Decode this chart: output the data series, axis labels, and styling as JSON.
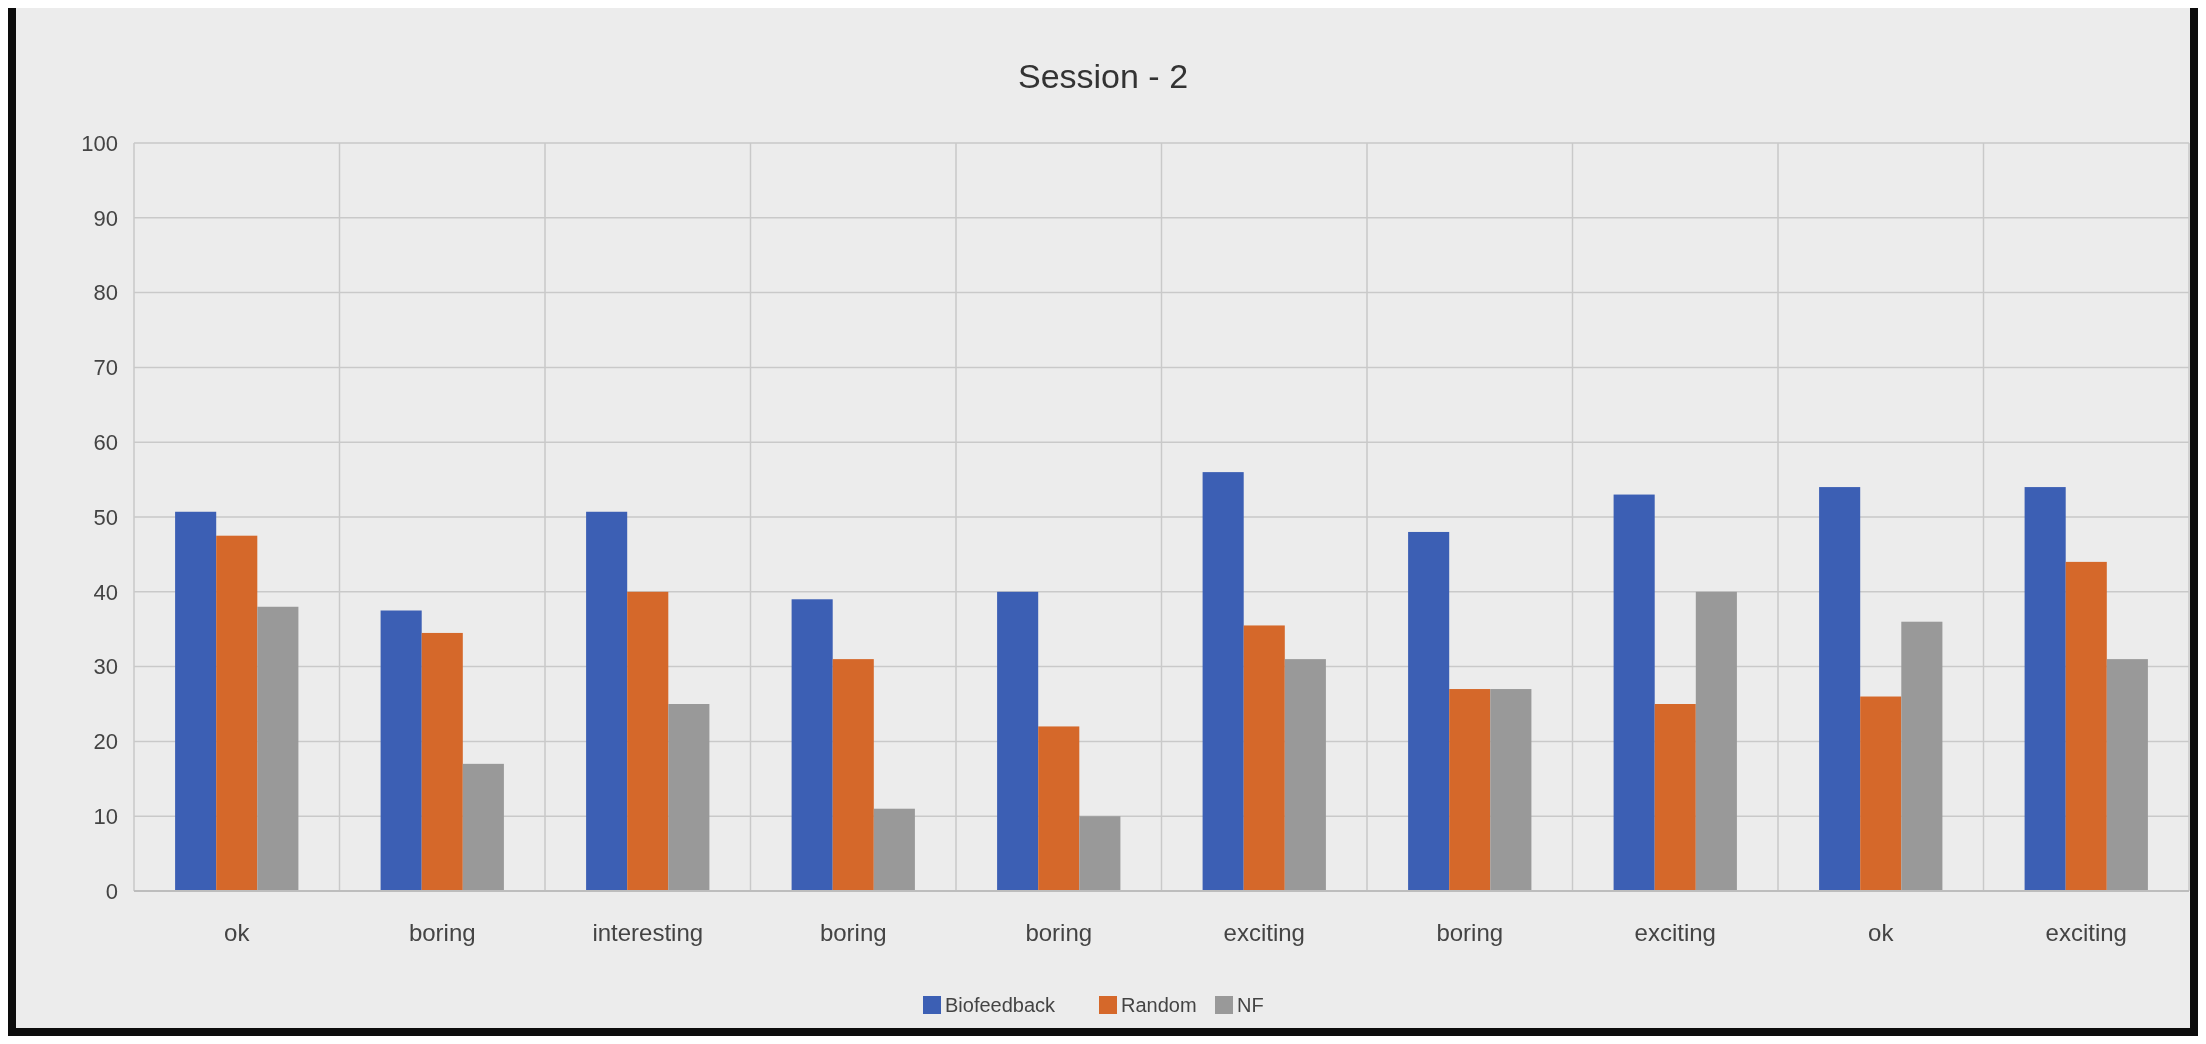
{
  "chart_data": {
    "type": "bar",
    "title": "Session - 2",
    "categories": [
      "ok",
      "boring",
      "interesting",
      "boring",
      "boring",
      "exciting",
      "boring",
      "exciting",
      "ok",
      "exciting"
    ],
    "series": [
      {
        "name": "Biofeedback",
        "color": "#3c5fb4",
        "values": [
          50.7,
          37.5,
          50.7,
          39,
          40,
          56,
          48,
          53,
          54,
          54
        ]
      },
      {
        "name": "Random",
        "color": "#d5682a",
        "values": [
          47.5,
          34.5,
          40,
          31,
          22,
          35.5,
          27,
          25,
          26,
          44
        ]
      },
      {
        "name": "NF",
        "color": "#999999",
        "values": [
          38,
          17,
          25,
          11,
          10,
          31,
          27,
          40,
          36,
          31
        ]
      }
    ],
    "ylim": [
      0,
      100
    ],
    "yticks": [
      0,
      10,
      20,
      30,
      40,
      50,
      60,
      70,
      80,
      90,
      100
    ],
    "grid": true,
    "legend": "bottom"
  }
}
